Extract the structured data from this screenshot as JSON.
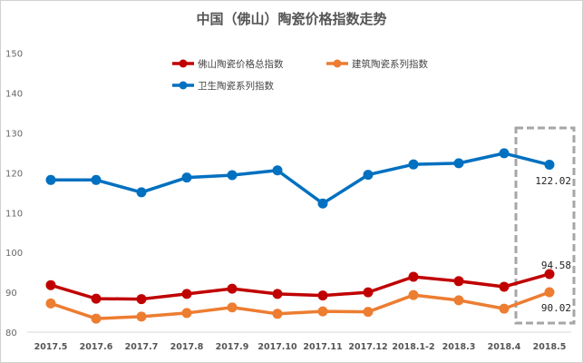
{
  "chart_data": {
    "type": "line",
    "title": "中国（佛山）陶瓷价格指数走势",
    "categories": [
      "2017.5",
      "2017.6",
      "2017.7",
      "2017.8",
      "2017.9",
      "2017.10",
      "2017.11",
      "2017.12",
      "2018.1-2",
      "2018.3",
      "2018.4",
      "2018.5"
    ],
    "ylim": [
      80,
      150
    ],
    "yticks": [
      "80",
      "90",
      "100",
      "110",
      "120",
      "130",
      "140",
      "150"
    ],
    "grid": false,
    "legend": "top",
    "series": [
      {
        "name": "佛山陶瓷价格总指数",
        "color": "#c00000",
        "values": [
          91.8,
          88.4,
          88.3,
          89.6,
          90.9,
          89.6,
          89.2,
          90.0,
          93.9,
          92.8,
          91.4,
          94.58
        ]
      },
      {
        "name": "建筑陶瓷系列指数",
        "color": "#ed7d31",
        "values": [
          87.2,
          83.4,
          83.9,
          84.8,
          86.2,
          84.6,
          85.2,
          85.1,
          89.3,
          88.0,
          85.9,
          90.02
        ]
      },
      {
        "name": "卫生陶瓷系列指数",
        "color": "#0070c0",
        "values": [
          118.2,
          118.2,
          115.1,
          118.8,
          119.4,
          120.6,
          112.3,
          119.5,
          122.1,
          122.4,
          124.9,
          122.02
        ]
      }
    ],
    "annotations": [
      "122.02",
      "94.58",
      "90.02"
    ]
  }
}
